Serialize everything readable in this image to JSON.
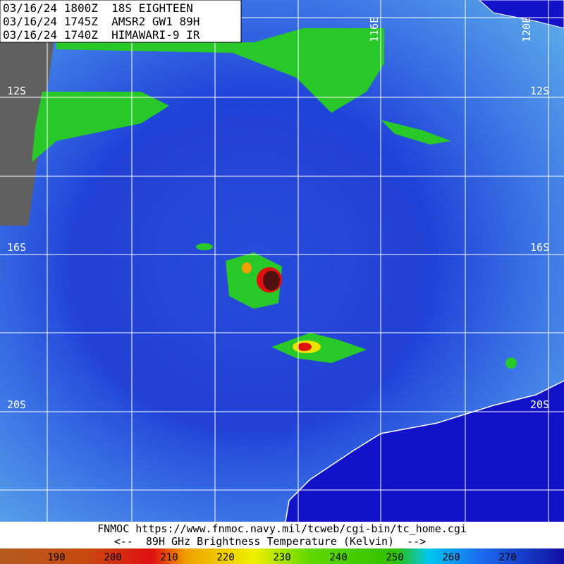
{
  "header": {
    "lines": [
      "03/16/24 1800Z  18S EIGHTEEN",
      "03/16/24 1745Z  AMSR2 GW1 89H",
      "03/16/24 1740Z  HIMAWARI-9 IR"
    ]
  },
  "labels": {
    "lat": [
      "12S",
      "16S",
      "20S"
    ],
    "lon": [
      "116E",
      "120E"
    ]
  },
  "footer": {
    "source": "FNMOC https://www.fnmoc.navy.mil/tcweb/cgi-bin/tc_home.cgi",
    "legend": "<--  89H GHz Brightness Temperature (Kelvin)  -->"
  },
  "colorbar": {
    "labels": [
      190,
      200,
      210,
      220,
      230,
      240,
      250,
      260,
      270
    ]
  }
}
